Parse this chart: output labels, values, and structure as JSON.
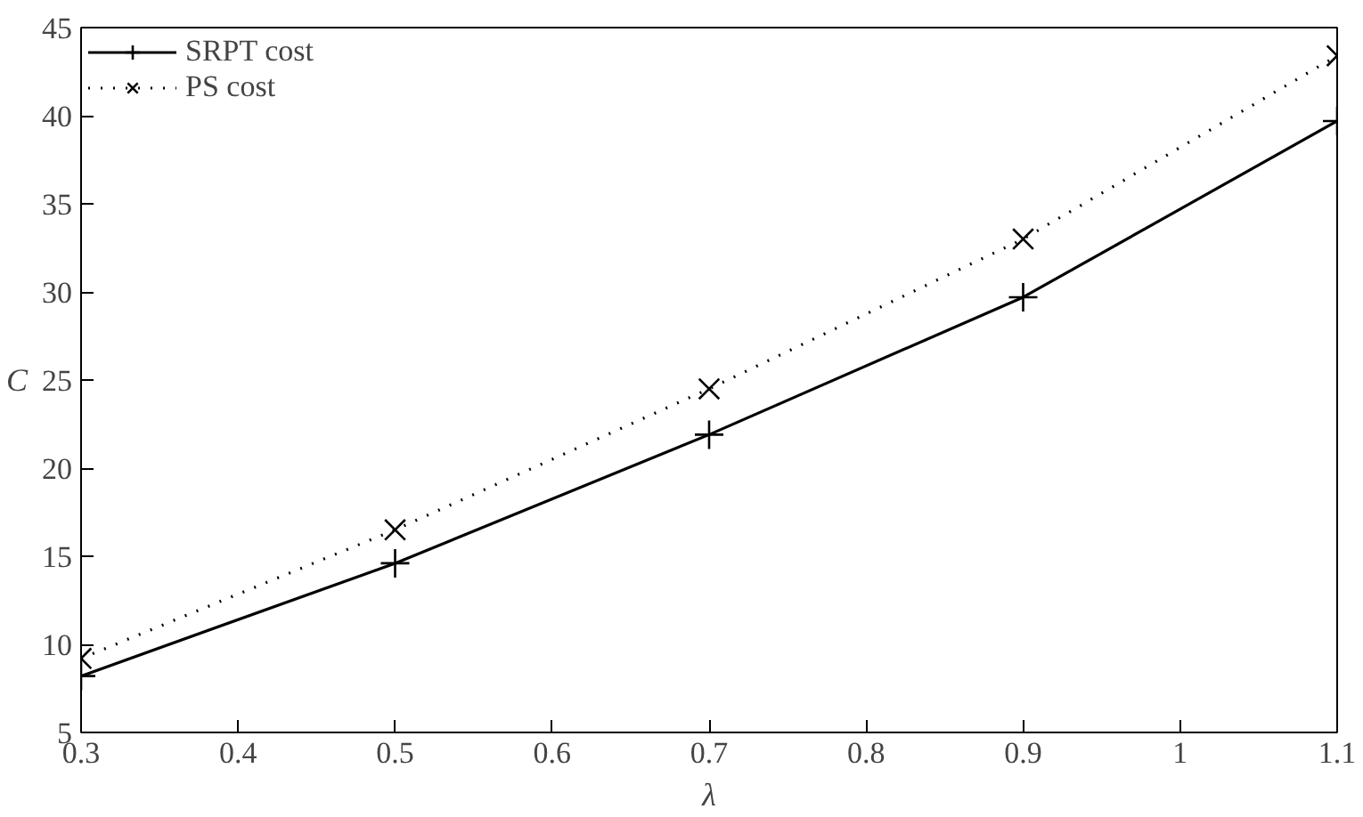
{
  "chart_data": {
    "type": "line",
    "xlabel": "λ",
    "ylabel": "C",
    "x": [
      0.3,
      0.5,
      0.7,
      0.9,
      1.1
    ],
    "series": [
      {
        "name": "SRPT cost",
        "color": "#000000",
        "values": [
          8.2,
          14.6,
          21.9,
          29.7,
          39.7
        ],
        "marker": "cross",
        "line_style": "solid"
      },
      {
        "name": "PS cost",
        "color": "#000000",
        "values": [
          9.2,
          16.5,
          24.5,
          33.0,
          43.4
        ],
        "marker": "x",
        "line_style": "dotted"
      }
    ],
    "xlim": [
      0.3,
      1.1
    ],
    "xticks": [
      0.3,
      0.4,
      0.5,
      0.6,
      0.7,
      0.8,
      0.9,
      1,
      1.1
    ],
    "ylim": [
      5,
      45
    ],
    "yticks": [
      5,
      10,
      15,
      20,
      25,
      30,
      35,
      40,
      45
    ],
    "grid": false,
    "legend": "top left"
  }
}
